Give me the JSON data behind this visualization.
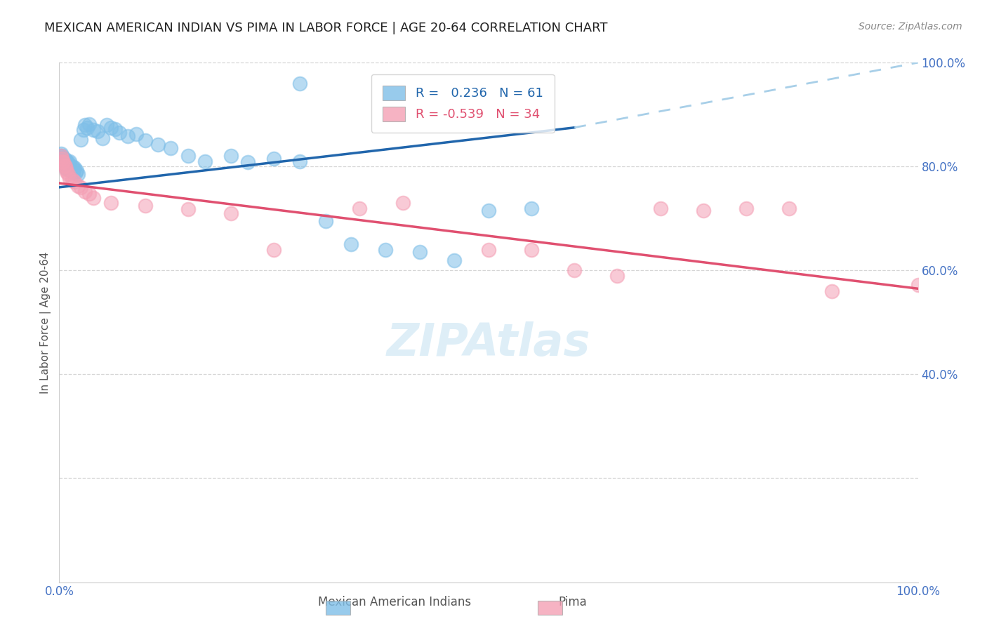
{
  "title": "MEXICAN AMERICAN INDIAN VS PIMA IN LABOR FORCE | AGE 20-64 CORRELATION CHART",
  "source": "Source: ZipAtlas.com",
  "ylabel": "In Labor Force | Age 20-64",
  "xlim": [
    0,
    1.0
  ],
  "ylim": [
    0,
    1.0
  ],
  "blue_R": 0.236,
  "blue_N": 61,
  "pink_R": -0.539,
  "pink_N": 34,
  "blue_color": "#7fbfe8",
  "pink_color": "#f4a0b5",
  "blue_line_color": "#2166ac",
  "pink_line_color": "#e05070",
  "dashed_line_color": "#a8cfe8",
  "background_color": "#ffffff",
  "grid_color": "#cccccc",
  "title_color": "#222222",
  "source_color": "#888888",
  "axis_tick_color": "#4472c4",
  "watermark_color": "#d0e8f5",
  "blue_scatter_x": [
    0.001,
    0.002,
    0.002,
    0.003,
    0.003,
    0.004,
    0.004,
    0.005,
    0.005,
    0.006,
    0.006,
    0.007,
    0.007,
    0.008,
    0.008,
    0.009,
    0.01,
    0.01,
    0.011,
    0.012,
    0.012,
    0.013,
    0.014,
    0.015,
    0.016,
    0.017,
    0.018,
    0.019,
    0.02,
    0.022,
    0.025,
    0.028,
    0.03,
    0.032,
    0.035,
    0.04,
    0.045,
    0.05,
    0.055,
    0.06,
    0.065,
    0.07,
    0.08,
    0.09,
    0.1,
    0.115,
    0.13,
    0.15,
    0.17,
    0.2,
    0.22,
    0.25,
    0.28,
    0.31,
    0.34,
    0.38,
    0.42,
    0.46,
    0.5,
    0.55,
    0.28
  ],
  "blue_scatter_y": [
    0.82,
    0.825,
    0.815,
    0.82,
    0.81,
    0.815,
    0.808,
    0.812,
    0.805,
    0.815,
    0.808,
    0.8,
    0.812,
    0.805,
    0.796,
    0.81,
    0.8,
    0.808,
    0.795,
    0.802,
    0.81,
    0.798,
    0.792,
    0.8,
    0.788,
    0.795,
    0.798,
    0.788,
    0.792,
    0.785,
    0.852,
    0.87,
    0.88,
    0.875,
    0.882,
    0.87,
    0.868,
    0.855,
    0.88,
    0.875,
    0.872,
    0.865,
    0.858,
    0.862,
    0.85,
    0.842,
    0.835,
    0.82,
    0.81,
    0.82,
    0.808,
    0.815,
    0.81,
    0.695,
    0.65,
    0.64,
    0.635,
    0.62,
    0.715,
    0.72,
    0.96
  ],
  "pink_scatter_x": [
    0.002,
    0.003,
    0.004,
    0.005,
    0.006,
    0.007,
    0.008,
    0.009,
    0.01,
    0.012,
    0.015,
    0.018,
    0.022,
    0.025,
    0.03,
    0.035,
    0.04,
    0.06,
    0.1,
    0.15,
    0.2,
    0.25,
    0.35,
    0.4,
    0.5,
    0.55,
    0.6,
    0.65,
    0.7,
    0.75,
    0.8,
    0.85,
    0.9,
    1.0
  ],
  "pink_scatter_y": [
    0.82,
    0.815,
    0.81,
    0.808,
    0.802,
    0.8,
    0.795,
    0.79,
    0.785,
    0.778,
    0.775,
    0.77,
    0.762,
    0.76,
    0.752,
    0.748,
    0.74,
    0.73,
    0.725,
    0.718,
    0.71,
    0.64,
    0.72,
    0.73,
    0.64,
    0.64,
    0.6,
    0.59,
    0.72,
    0.715,
    0.72,
    0.72,
    0.56,
    0.572
  ],
  "blue_line_x0": 0.0,
  "blue_line_x_solid_end": 0.6,
  "blue_line_x_dashed_end": 1.0,
  "blue_line_y0": 0.76,
  "blue_line_y_solid_end": 0.875,
  "blue_line_y_dashed_end": 1.0,
  "pink_line_x0": 0.0,
  "pink_line_x1": 1.0,
  "pink_line_y0": 0.768,
  "pink_line_y1": 0.565
}
